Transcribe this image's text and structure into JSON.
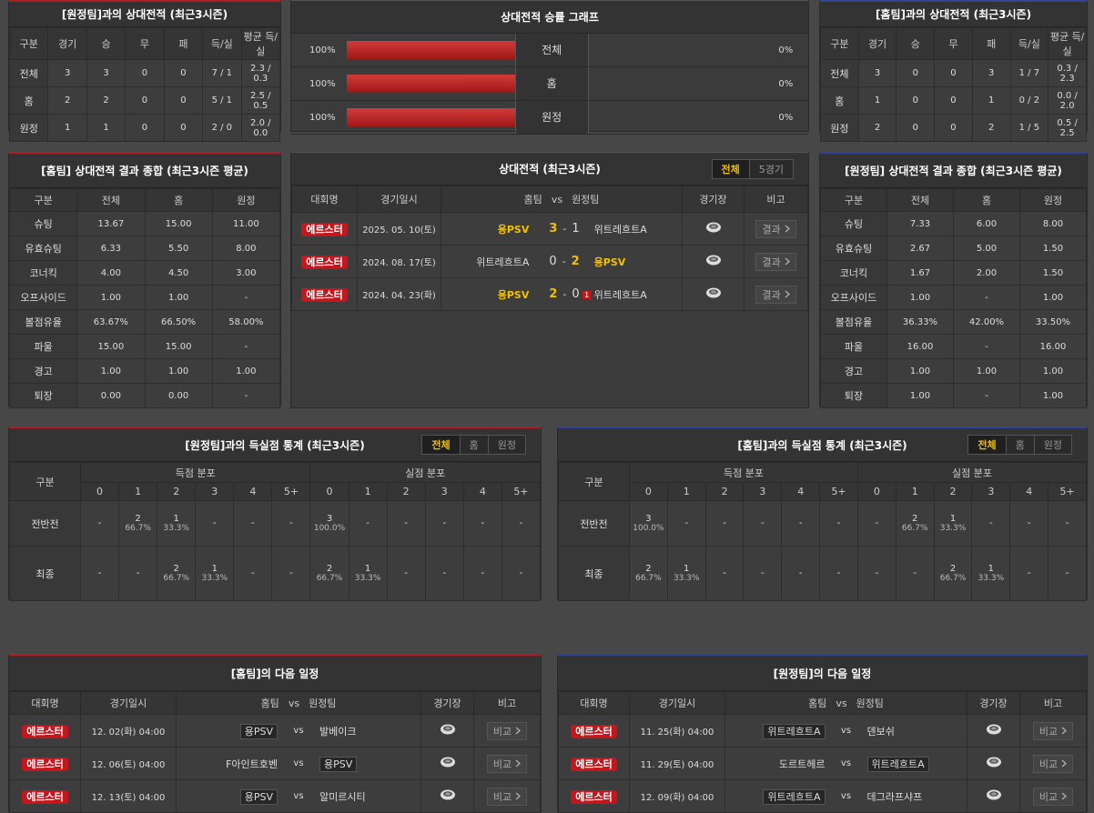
{
  "h2h_vs_away": {
    "title": "[원정팀]과의 상대전적 (최근3시즌)",
    "columns": [
      "구분",
      "경기",
      "승",
      "무",
      "패",
      "득/실",
      "평균 득/실"
    ],
    "rows": [
      [
        "전체",
        3,
        3,
        0,
        0,
        "7 / 1",
        "2.3 / 0.3"
      ],
      [
        "홈",
        2,
        2,
        0,
        0,
        "5 / 1",
        "2.5 / 0.5"
      ],
      [
        "원정",
        1,
        1,
        0,
        0,
        "2 / 0",
        "2.0 / 0.0"
      ]
    ]
  },
  "win_rate": {
    "title": "상대전적 승률 그래프",
    "rows": [
      {
        "label": "전체",
        "home": 100,
        "home_label": "100%",
        "away": 0,
        "away_label": "0%"
      },
      {
        "label": "홈",
        "home": 100,
        "home_label": "100%",
        "away": 0,
        "away_label": "0%"
      },
      {
        "label": "원정",
        "home": 100,
        "home_label": "100%",
        "away": 0,
        "away_label": "0%"
      }
    ]
  },
  "h2h_vs_home": {
    "title": "[홈팀]과의 상대전적 (최근3시즌)",
    "columns": [
      "구분",
      "경기",
      "승",
      "무",
      "패",
      "득/실",
      "평균 득/실"
    ],
    "rows": [
      [
        "전체",
        3,
        0,
        0,
        3,
        "1 / 7",
        "0.3 / 2.3"
      ],
      [
        "홈",
        1,
        0,
        0,
        1,
        "0 / 2",
        "0.0 / 2.0"
      ],
      [
        "원정",
        2,
        0,
        0,
        2,
        "1 / 5",
        "0.5 / 2.5"
      ]
    ]
  },
  "home_summary": {
    "title": "[홈팀] 상대전적 결과 종합 (최근3시즌 평균)",
    "columns": [
      "구분",
      "전체",
      "홈",
      "원정"
    ],
    "rows": [
      [
        "슈팅",
        "13.67",
        "15.00",
        "11.00"
      ],
      [
        "유효슈팅",
        "6.33",
        "5.50",
        "8.00"
      ],
      [
        "코너킥",
        "4.00",
        "4.50",
        "3.00"
      ],
      [
        "오프사이드",
        "1.00",
        "1.00",
        "-"
      ],
      [
        "볼점유율",
        "63.67%",
        "66.50%",
        "58.00%"
      ],
      [
        "파울",
        "15.00",
        "15.00",
        "-"
      ],
      [
        "경고",
        "1.00",
        "1.00",
        "1.00"
      ],
      [
        "퇴장",
        "0.00",
        "0.00",
        "-"
      ]
    ]
  },
  "h2h_matches": {
    "title": "상대전적 (최근3시즌)",
    "tabs": [
      "전체",
      "5경기"
    ],
    "columns": [
      "대회명",
      "경기일시",
      "홈팀",
      "vs",
      "원정팀",
      "경기장",
      "비고"
    ],
    "rows": [
      {
        "league": "에르스터",
        "date": "2025. 05. 10(토)",
        "home": "용PSV",
        "home_score": 3,
        "sep": "-",
        "away_score": 1,
        "away": "위트레흐트A",
        "note": "결과"
      },
      {
        "league": "에르스터",
        "date": "2024. 08. 17(토)",
        "home": "위트레흐트A",
        "home_score": 0,
        "sep": "-",
        "away_score": 2,
        "away": "용PSV",
        "note": "결과"
      },
      {
        "league": "에르스터",
        "date": "2024. 04. 23(화)",
        "home": "용PSV",
        "home_score": 2,
        "sep": "-",
        "away_score": 0,
        "red_card": 1,
        "away": "위트레흐트A",
        "note": "결과"
      }
    ]
  },
  "away_summary": {
    "title": "[원정팀] 상대전적 결과 종합 (최근3시즌 평균)",
    "columns": [
      "구분",
      "전체",
      "홈",
      "원정"
    ],
    "rows": [
      [
        "슈팅",
        "7.33",
        "6.00",
        "8.00"
      ],
      [
        "유효슈팅",
        "2.67",
        "5.00",
        "1.50"
      ],
      [
        "코너킥",
        "1.67",
        "2.00",
        "1.50"
      ],
      [
        "오프사이드",
        "1.00",
        "-",
        "1.00"
      ],
      [
        "볼점유율",
        "36.33%",
        "42.00%",
        "33.50%"
      ],
      [
        "파울",
        "16.00",
        "-",
        "16.00"
      ],
      [
        "경고",
        "1.00",
        "1.00",
        "1.00"
      ],
      [
        "퇴장",
        "1.00",
        "-",
        "1.00"
      ]
    ]
  },
  "goals_vs_away": {
    "title": "[원정팀]과의 득실점 통계 (최근3시즌)",
    "tabs": [
      "전체",
      "홈",
      "원정"
    ],
    "group_label": "구분",
    "scored_label": "득점 분포",
    "conceded_label": "실점 분포",
    "bins": [
      "0",
      "1",
      "2",
      "3",
      "4",
      "5+"
    ],
    "rows": [
      {
        "label": "전반전",
        "scored": [
          "-",
          {
            "count": 2,
            "pct": "66.7%"
          },
          {
            "count": 1,
            "pct": "33.3%"
          },
          "-",
          "-",
          "-"
        ],
        "conceded": [
          {
            "count": 3,
            "pct": "100.0%"
          },
          "-",
          "-",
          "-",
          "-",
          "-"
        ]
      },
      {
        "label": "최종",
        "scored": [
          "-",
          "-",
          {
            "count": 2,
            "pct": "66.7%"
          },
          {
            "count": 1,
            "pct": "33.3%"
          },
          "-",
          "-"
        ],
        "conceded": [
          {
            "count": 2,
            "pct": "66.7%"
          },
          {
            "count": 1,
            "pct": "33.3%"
          },
          "-",
          "-",
          "-",
          "-"
        ]
      }
    ]
  },
  "goals_vs_home": {
    "title": "[홈팀]과의 득실점 통계 (최근3시즌)",
    "tabs": [
      "전체",
      "홈",
      "원정"
    ],
    "group_label": "구분",
    "scored_label": "득점 분포",
    "conceded_label": "실점 분포",
    "bins": [
      "0",
      "1",
      "2",
      "3",
      "4",
      "5+"
    ],
    "rows": [
      {
        "label": "전반전",
        "scored": [
          {
            "count": 3,
            "pct": "100.0%"
          },
          "-",
          "-",
          "-",
          "-",
          "-"
        ],
        "conceded": [
          "-",
          {
            "count": 2,
            "pct": "66.7%"
          },
          {
            "count": 1,
            "pct": "33.3%"
          },
          "-",
          "-",
          "-"
        ]
      },
      {
        "label": "최종",
        "scored": [
          {
            "count": 2,
            "pct": "66.7%"
          },
          {
            "count": 1,
            "pct": "33.3%"
          },
          "-",
          "-",
          "-",
          "-"
        ],
        "conceded": [
          "-",
          "-",
          {
            "count": 2,
            "pct": "66.7%"
          },
          {
            "count": 1,
            "pct": "33.3%"
          },
          "-",
          "-"
        ]
      }
    ]
  },
  "next_home": {
    "title": "[홈팀]의 다음 일정",
    "columns": [
      "대회명",
      "경기일시",
      "홈팀",
      "vs",
      "원정팀",
      "경기장",
      "비고"
    ],
    "rows": [
      {
        "league": "에르스터",
        "date": "12. 02(화) 04:00",
        "home": "용PSV",
        "vs": "vs",
        "away": "발베이크",
        "note": "비교"
      },
      {
        "league": "에르스터",
        "date": "12. 06(토) 04:00",
        "home": "F아인트호벤",
        "vs": "vs",
        "away": "용PSV",
        "note": "비교"
      },
      {
        "league": "에르스터",
        "date": "12. 13(토) 04:00",
        "home": "용PSV",
        "vs": "vs",
        "away": "알미르시티",
        "note": "비교"
      }
    ]
  },
  "next_away": {
    "title": "[원정팀]의 다음 일정",
    "columns": [
      "대회명",
      "경기일시",
      "홈팀",
      "vs",
      "원정팀",
      "경기장",
      "비고"
    ],
    "rows": [
      {
        "league": "에르스터",
        "date": "11. 25(화) 04:00",
        "home": "위트레흐트A",
        "vs": "vs",
        "away": "덴보쉬",
        "note": "비교"
      },
      {
        "league": "에르스터",
        "date": "11. 29(토) 04:00",
        "home": "도르트헤르",
        "vs": "vs",
        "away": "위트레흐트A",
        "note": "비교"
      },
      {
        "league": "에르스터",
        "date": "12. 09(화) 04:00",
        "home": "위트레흐트A",
        "vs": "vs",
        "away": "데그라프샤프",
        "note": "비교"
      }
    ]
  }
}
